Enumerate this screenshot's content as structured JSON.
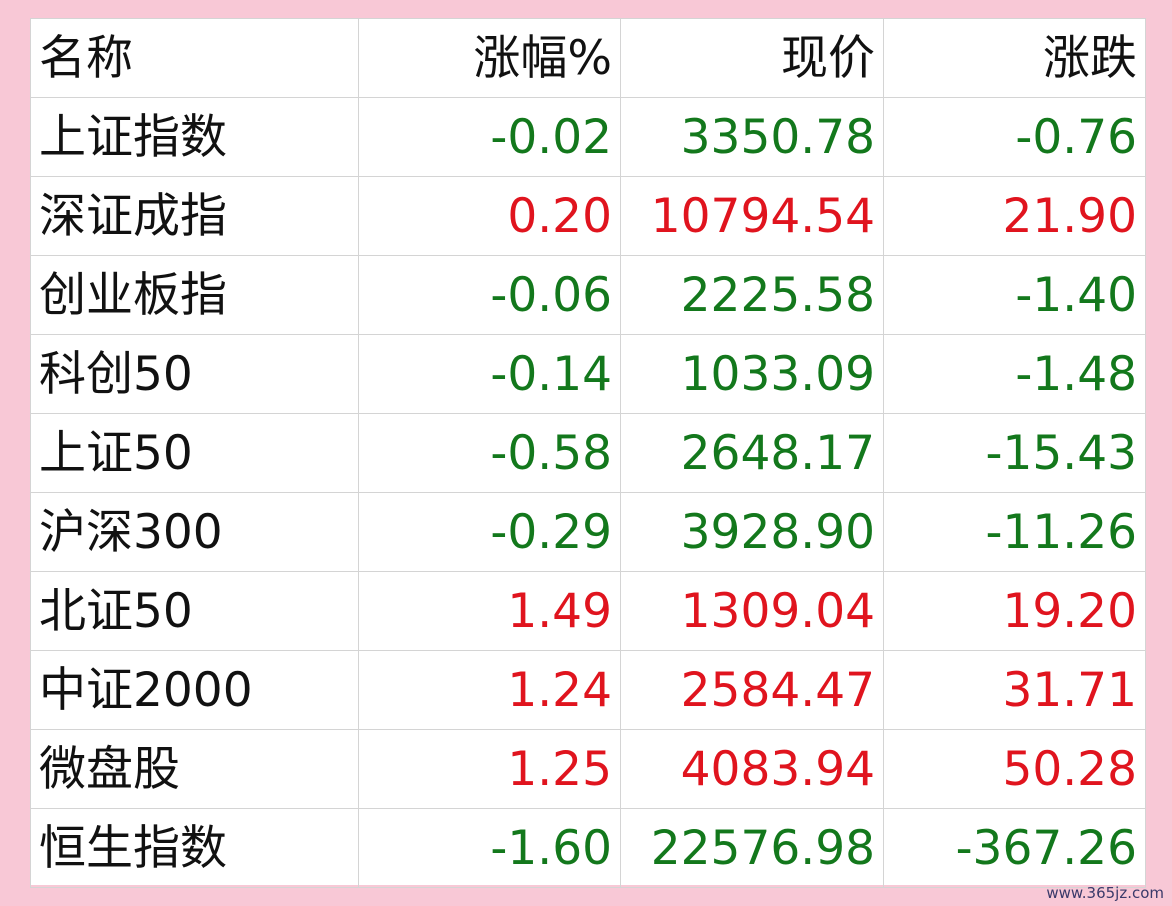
{
  "table": {
    "header": [
      "名称",
      "涨幅%",
      "现价",
      "涨跌"
    ],
    "rows": [
      [
        "上证指数",
        "-0.02",
        "3350.78",
        "-0.76"
      ],
      [
        "深证成指",
        "0.20",
        "10794.54",
        "21.90"
      ],
      [
        "创业板指",
        "-0.06",
        "2225.58",
        "-1.40"
      ],
      [
        "科创50",
        "-0.14",
        "1033.09",
        "-1.48"
      ],
      [
        "上证50",
        "-0.58",
        "2648.17",
        "-15.43"
      ],
      [
        "沪深300",
        "-0.29",
        "3928.90",
        "-11.26"
      ],
      [
        "北证50",
        "1.49",
        "1309.04",
        "19.20"
      ],
      [
        "中证2000",
        "1.24",
        "2584.47",
        "31.71"
      ],
      [
        "微盘股",
        "1.25",
        "4083.94",
        "50.28"
      ],
      [
        "恒生指数",
        "-1.60",
        "22576.98",
        "-367.26"
      ]
    ],
    "colors": {
      "up": "#e0141e",
      "down": "#13781c",
      "name": "#111111"
    }
  },
  "watermark": "www.365jz.com"
}
